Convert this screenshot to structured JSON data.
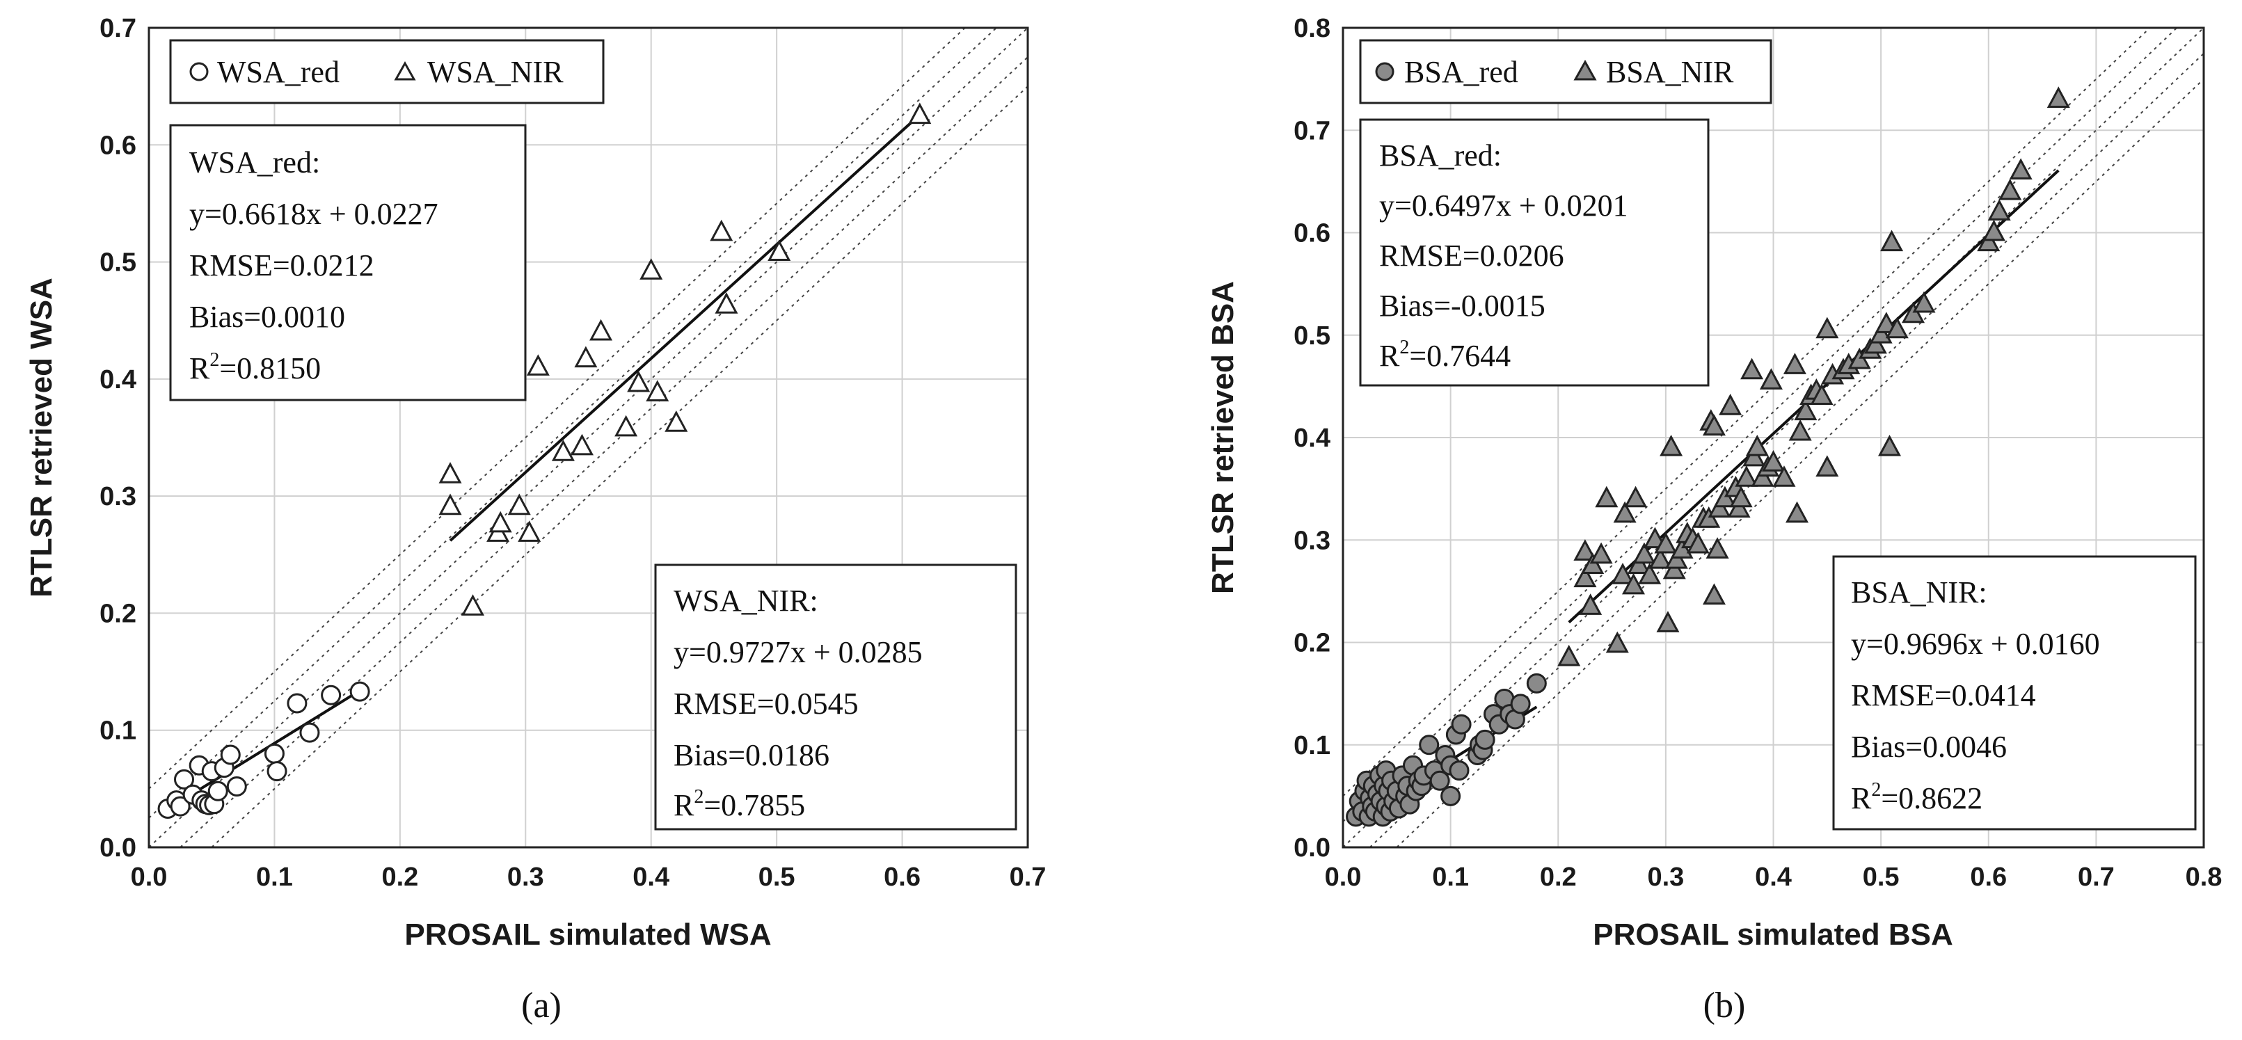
{
  "chart_data": [
    {
      "id": "a",
      "type": "scatter",
      "caption": "(a)",
      "xlabel": "PROSAIL simulated WSA",
      "ylabel": "RTLSR retrieved WSA",
      "xlim": [
        0,
        0.7
      ],
      "ylim": [
        0,
        0.7
      ],
      "xticks": [
        "0.0",
        "0.1",
        "0.2",
        "0.3",
        "0.4",
        "0.5",
        "0.6",
        "0.7"
      ],
      "yticks": [
        "0.0",
        "0.1",
        "0.2",
        "0.3",
        "0.4",
        "0.5",
        "0.6",
        "0.7"
      ],
      "grid": true,
      "reference_lines": {
        "offsets": [
          -0.05,
          -0.025,
          0,
          0.025,
          0.05
        ],
        "style": "dotted"
      },
      "legend": [
        "WSA_red",
        "WSA_NIR"
      ],
      "series": [
        {
          "name": "WSA_red",
          "marker": "circle",
          "fill": "#ffffff",
          "points": [
            [
              0.015,
              0.033
            ],
            [
              0.022,
              0.04
            ],
            [
              0.025,
              0.035
            ],
            [
              0.028,
              0.058
            ],
            [
              0.035,
              0.045
            ],
            [
              0.04,
              0.07
            ],
            [
              0.042,
              0.04
            ],
            [
              0.045,
              0.037
            ],
            [
              0.048,
              0.036
            ],
            [
              0.05,
              0.065
            ],
            [
              0.052,
              0.037
            ],
            [
              0.055,
              0.048
            ],
            [
              0.06,
              0.068
            ],
            [
              0.065,
              0.079
            ],
            [
              0.07,
              0.052
            ],
            [
              0.1,
              0.08
            ],
            [
              0.102,
              0.065
            ],
            [
              0.118,
              0.123
            ],
            [
              0.128,
              0.098
            ],
            [
              0.145,
              0.13
            ],
            [
              0.168,
              0.133
            ]
          ],
          "fit": {
            "x": [
              0.015,
              0.168
            ]
          }
        },
        {
          "name": "WSA_NIR",
          "marker": "triangle",
          "fill": "#ffffff",
          "points": [
            [
              0.24,
              0.318
            ],
            [
              0.24,
              0.291
            ],
            [
              0.258,
              0.205
            ],
            [
              0.278,
              0.268
            ],
            [
              0.28,
              0.276
            ],
            [
              0.295,
              0.291
            ],
            [
              0.303,
              0.268
            ],
            [
              0.31,
              0.41
            ],
            [
              0.33,
              0.337
            ],
            [
              0.345,
              0.342
            ],
            [
              0.348,
              0.417
            ],
            [
              0.36,
              0.44
            ],
            [
              0.38,
              0.358
            ],
            [
              0.39,
              0.396
            ],
            [
              0.4,
              0.492
            ],
            [
              0.405,
              0.388
            ],
            [
              0.42,
              0.362
            ],
            [
              0.456,
              0.525
            ],
            [
              0.46,
              0.463
            ],
            [
              0.502,
              0.508
            ],
            [
              0.614,
              0.625
            ]
          ],
          "fit": {
            "x": [
              0.24,
              0.614
            ]
          }
        }
      ],
      "stat_boxes": [
        {
          "series": "WSA_red",
          "title": "WSA_red:",
          "equation": "y=0.6618x + 0.0227",
          "rmse": "RMSE=0.0212",
          "bias": "Bias=0.0010",
          "r2_prefix": "R",
          "r2_sup": "2",
          "r2_value": "=0.8150",
          "slope": 0.6618,
          "intercept": 0.0227
        },
        {
          "series": "WSA_NIR",
          "title": "WSA_NIR:",
          "equation": "y=0.9727x + 0.0285",
          "rmse": "RMSE=0.0545",
          "bias": "Bias=0.0186",
          "r2_prefix": "R",
          "r2_sup": "2",
          "r2_value": "=0.7855",
          "slope": 0.9727,
          "intercept": 0.0285
        }
      ]
    },
    {
      "id": "b",
      "type": "scatter",
      "caption": "(b)",
      "xlabel": "PROSAIL simulated BSA",
      "ylabel": "RTLSR retrieved BSA",
      "xlim": [
        0,
        0.8
      ],
      "ylim": [
        0,
        0.8
      ],
      "xticks": [
        "0.0",
        "0.1",
        "0.2",
        "0.3",
        "0.4",
        "0.5",
        "0.6",
        "0.7",
        "0.8"
      ],
      "yticks": [
        "0.0",
        "0.1",
        "0.2",
        "0.3",
        "0.4",
        "0.5",
        "0.6",
        "0.7",
        "0.8"
      ],
      "grid": true,
      "reference_lines": {
        "offsets": [
          -0.05,
          -0.025,
          0,
          0.025,
          0.05
        ],
        "style": "dotted"
      },
      "legend": [
        "BSA_red",
        "BSA_NIR"
      ],
      "series": [
        {
          "name": "BSA_red",
          "marker": "circle",
          "fill": "#8a8a8a",
          "points": [
            [
              0.012,
              0.03
            ],
            [
              0.015,
              0.045
            ],
            [
              0.018,
              0.035
            ],
            [
              0.02,
              0.055
            ],
            [
              0.022,
              0.065
            ],
            [
              0.024,
              0.03
            ],
            [
              0.025,
              0.048
            ],
            [
              0.027,
              0.04
            ],
            [
              0.028,
              0.06
            ],
            [
              0.03,
              0.035
            ],
            [
              0.032,
              0.052
            ],
            [
              0.034,
              0.07
            ],
            [
              0.035,
              0.045
            ],
            [
              0.037,
              0.03
            ],
            [
              0.038,
              0.06
            ],
            [
              0.04,
              0.04
            ],
            [
              0.04,
              0.075
            ],
            [
              0.042,
              0.055
            ],
            [
              0.044,
              0.035
            ],
            [
              0.045,
              0.065
            ],
            [
              0.047,
              0.045
            ],
            [
              0.05,
              0.055
            ],
            [
              0.052,
              0.038
            ],
            [
              0.055,
              0.07
            ],
            [
              0.058,
              0.05
            ],
            [
              0.06,
              0.06
            ],
            [
              0.062,
              0.042
            ],
            [
              0.065,
              0.08
            ],
            [
              0.068,
              0.055
            ],
            [
              0.07,
              0.065
            ],
            [
              0.073,
              0.06
            ],
            [
              0.075,
              0.07
            ],
            [
              0.08,
              0.1
            ],
            [
              0.085,
              0.075
            ],
            [
              0.09,
              0.065
            ],
            [
              0.095,
              0.09
            ],
            [
              0.1,
              0.08
            ],
            [
              0.1,
              0.05
            ],
            [
              0.105,
              0.11
            ],
            [
              0.108,
              0.075
            ],
            [
              0.11,
              0.12
            ],
            [
              0.125,
              0.09
            ],
            [
              0.127,
              0.1
            ],
            [
              0.13,
              0.095
            ],
            [
              0.132,
              0.105
            ],
            [
              0.14,
              0.13
            ],
            [
              0.145,
              0.12
            ],
            [
              0.15,
              0.145
            ],
            [
              0.155,
              0.13
            ],
            [
              0.16,
              0.125
            ],
            [
              0.165,
              0.14
            ],
            [
              0.18,
              0.16
            ]
          ],
          "fit": {
            "x": [
              0.012,
              0.18
            ]
          }
        },
        {
          "name": "BSA_NIR",
          "marker": "triangle",
          "fill": "#8a8a8a",
          "points": [
            [
              0.21,
              0.185
            ],
            [
              0.225,
              0.288
            ],
            [
              0.225,
              0.262
            ],
            [
              0.23,
              0.235
            ],
            [
              0.232,
              0.275
            ],
            [
              0.24,
              0.285
            ],
            [
              0.245,
              0.34
            ],
            [
              0.255,
              0.198
            ],
            [
              0.26,
              0.265
            ],
            [
              0.262,
              0.325
            ],
            [
              0.27,
              0.255
            ],
            [
              0.272,
              0.34
            ],
            [
              0.275,
              0.275
            ],
            [
              0.28,
              0.285
            ],
            [
              0.285,
              0.265
            ],
            [
              0.29,
              0.3
            ],
            [
              0.295,
              0.28
            ],
            [
              0.3,
              0.295
            ],
            [
              0.302,
              0.218
            ],
            [
              0.305,
              0.39
            ],
            [
              0.308,
              0.27
            ],
            [
              0.31,
              0.28
            ],
            [
              0.315,
              0.29
            ],
            [
              0.32,
              0.305
            ],
            [
              0.325,
              0.3
            ],
            [
              0.33,
              0.295
            ],
            [
              0.335,
              0.32
            ],
            [
              0.34,
              0.32
            ],
            [
              0.342,
              0.415
            ],
            [
              0.345,
              0.245
            ],
            [
              0.345,
              0.41
            ],
            [
              0.348,
              0.29
            ],
            [
              0.35,
              0.33
            ],
            [
              0.355,
              0.34
            ],
            [
              0.36,
              0.43
            ],
            [
              0.365,
              0.35
            ],
            [
              0.368,
              0.33
            ],
            [
              0.37,
              0.34
            ],
            [
              0.375,
              0.36
            ],
            [
              0.38,
              0.465
            ],
            [
              0.382,
              0.38
            ],
            [
              0.385,
              0.39
            ],
            [
              0.39,
              0.36
            ],
            [
              0.395,
              0.37
            ],
            [
              0.398,
              0.455
            ],
            [
              0.4,
              0.375
            ],
            [
              0.41,
              0.36
            ],
            [
              0.42,
              0.47
            ],
            [
              0.422,
              0.325
            ],
            [
              0.425,
              0.405
            ],
            [
              0.43,
              0.425
            ],
            [
              0.435,
              0.44
            ],
            [
              0.44,
              0.445
            ],
            [
              0.445,
              0.44
            ],
            [
              0.45,
              0.505
            ],
            [
              0.45,
              0.37
            ],
            [
              0.455,
              0.46
            ],
            [
              0.465,
              0.465
            ],
            [
              0.47,
              0.47
            ],
            [
              0.48,
              0.475
            ],
            [
              0.49,
              0.485
            ],
            [
              0.495,
              0.49
            ],
            [
              0.5,
              0.5
            ],
            [
              0.505,
              0.51
            ],
            [
              0.508,
              0.39
            ],
            [
              0.51,
              0.59
            ],
            [
              0.515,
              0.505
            ],
            [
              0.53,
              0.52
            ],
            [
              0.54,
              0.53
            ],
            [
              0.6,
              0.59
            ],
            [
              0.605,
              0.6
            ],
            [
              0.61,
              0.62
            ],
            [
              0.62,
              0.64
            ],
            [
              0.63,
              0.66
            ],
            [
              0.665,
              0.73
            ]
          ],
          "fit": {
            "x": [
              0.21,
              0.665
            ]
          }
        }
      ],
      "stat_boxes": [
        {
          "series": "BSA_red",
          "title": "BSA_red:",
          "equation": "y=0.6497x + 0.0201",
          "rmse": "RMSE=0.0206",
          "bias": "Bias=-0.0015",
          "r2_prefix": "R",
          "r2_sup": "2",
          "r2_value": "=0.7644",
          "slope": 0.6497,
          "intercept": 0.0201
        },
        {
          "series": "BSA_NIR",
          "title": "BSA_NIR:",
          "equation": "y=0.9696x + 0.0160",
          "rmse": "RMSE=0.0414",
          "bias": "Bias=0.0046",
          "r2_prefix": "R",
          "r2_sup": "2",
          "r2_value": "=0.8622",
          "slope": 0.9696,
          "intercept": 0.016
        }
      ]
    }
  ]
}
